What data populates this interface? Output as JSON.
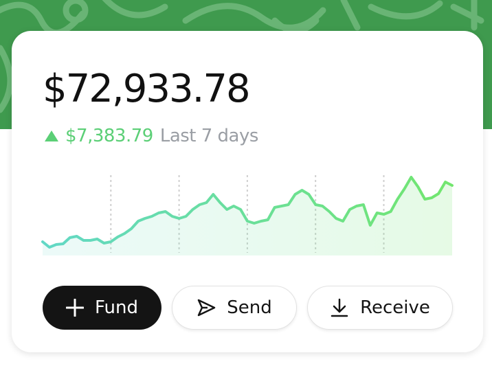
{
  "balance": "$72,933.78",
  "change": {
    "amount": "$7,383.79",
    "period": "Last 7 days"
  },
  "chart_data": {
    "type": "line",
    "colors": [
      "#62d8c6",
      "#72e66e"
    ],
    "values": [
      18,
      10,
      14,
      15,
      24,
      26,
      20,
      20,
      22,
      16,
      18,
      25,
      30,
      37,
      48,
      52,
      55,
      60,
      62,
      55,
      52,
      55,
      65,
      72,
      75,
      87,
      75,
      65,
      70,
      65,
      48,
      45,
      48,
      50,
      68,
      70,
      72,
      87,
      93,
      87,
      72,
      70,
      62,
      52,
      48,
      65,
      70,
      72,
      42,
      60,
      58,
      62,
      80,
      95,
      112,
      98,
      80,
      82,
      88,
      105,
      100
    ]
  },
  "buttons": [
    {
      "label": "Fund"
    },
    {
      "label": "Send"
    },
    {
      "label": "Receive"
    }
  ]
}
